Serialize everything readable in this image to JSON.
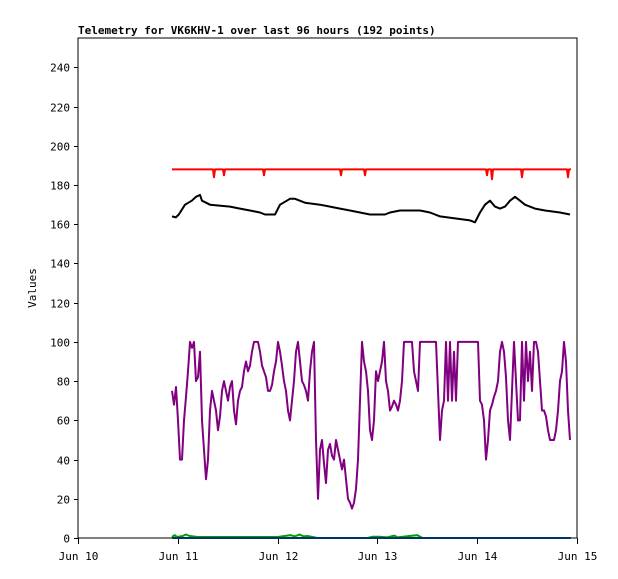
{
  "chart_data": {
    "type": "line",
    "title": "Telemetry for VK6KHV-1 over last 96 hours (192 points)",
    "xlabel": "",
    "ylabel": "Values",
    "xlim": [
      0,
      5
    ],
    "ylim": [
      0,
      255
    ],
    "x_units": "days since Jun 10",
    "xticks": [
      {
        "value": 0,
        "label": "Jun 10"
      },
      {
        "value": 1,
        "label": "Jun 11"
      },
      {
        "value": 2,
        "label": "Jun 12"
      },
      {
        "value": 3,
        "label": "Jun 13"
      },
      {
        "value": 4,
        "label": "Jun 14"
      },
      {
        "value": 5,
        "label": "Jun 15"
      }
    ],
    "yticks": [
      0,
      20,
      40,
      60,
      80,
      100,
      120,
      140,
      160,
      180,
      200,
      220,
      240
    ],
    "grid": false,
    "legend": "none",
    "series": [
      {
        "name": "red",
        "color": "#ff0000",
        "points": [
          [
            0.942,
            188
          ],
          [
            1.353,
            188
          ],
          [
            1.363,
            184
          ],
          [
            1.373,
            188
          ],
          [
            1.453,
            188
          ],
          [
            1.463,
            185
          ],
          [
            1.473,
            188
          ],
          [
            1.854,
            188
          ],
          [
            1.864,
            185
          ],
          [
            1.874,
            188
          ],
          [
            2.625,
            188
          ],
          [
            2.635,
            185
          ],
          [
            2.645,
            188
          ],
          [
            2.866,
            188
          ],
          [
            2.876,
            185
          ],
          [
            2.886,
            188
          ],
          [
            4.088,
            188
          ],
          [
            4.098,
            185
          ],
          [
            4.108,
            188
          ],
          [
            4.138,
            188
          ],
          [
            4.148,
            183
          ],
          [
            4.158,
            188
          ],
          [
            4.439,
            188
          ],
          [
            4.449,
            184
          ],
          [
            4.459,
            188
          ],
          [
            4.9,
            188
          ],
          [
            4.91,
            184
          ],
          [
            4.92,
            188
          ],
          [
            4.94,
            188
          ]
        ]
      },
      {
        "name": "black",
        "color": "#000000",
        "points": [
          [
            0.942,
            164
          ],
          [
            0.98,
            163.5
          ],
          [
            1.01,
            165
          ],
          [
            1.072,
            170
          ],
          [
            1.14,
            172
          ],
          [
            1.182,
            174
          ],
          [
            1.222,
            175
          ],
          [
            1.242,
            172
          ],
          [
            1.323,
            170
          ],
          [
            1.523,
            169
          ],
          [
            1.623,
            168
          ],
          [
            1.723,
            167
          ],
          [
            1.824,
            166
          ],
          [
            1.874,
            165
          ],
          [
            1.974,
            165
          ],
          [
            2.024,
            170
          ],
          [
            2.124,
            173
          ],
          [
            2.174,
            173
          ],
          [
            2.275,
            171
          ],
          [
            2.425,
            170
          ],
          [
            2.525,
            169
          ],
          [
            2.625,
            168
          ],
          [
            2.725,
            167
          ],
          [
            2.826,
            166
          ],
          [
            2.926,
            165
          ],
          [
            3.076,
            165
          ],
          [
            3.126,
            166
          ],
          [
            3.226,
            167
          ],
          [
            3.427,
            167
          ],
          [
            3.527,
            166
          ],
          [
            3.627,
            164
          ],
          [
            3.778,
            163
          ],
          [
            3.928,
            162
          ],
          [
            3.978,
            161
          ],
          [
            4.028,
            166
          ],
          [
            4.078,
            170
          ],
          [
            4.128,
            172
          ],
          [
            4.178,
            169
          ],
          [
            4.228,
            168
          ],
          [
            4.279,
            169
          ],
          [
            4.329,
            172
          ],
          [
            4.379,
            174
          ],
          [
            4.429,
            172
          ],
          [
            4.479,
            170
          ],
          [
            4.579,
            168
          ],
          [
            4.679,
            167
          ],
          [
            4.83,
            166
          ],
          [
            4.93,
            165
          ]
        ]
      },
      {
        "name": "purple",
        "color": "#800080",
        "x_start": 0.942,
        "x_step": 0.02004,
        "values": [
          75,
          68,
          77,
          60,
          40,
          40,
          60,
          72,
          85,
          100,
          97,
          100,
          80,
          82,
          95,
          60,
          45,
          30,
          40,
          65,
          75,
          70,
          65,
          55,
          62,
          75,
          80,
          75,
          70,
          77,
          80,
          65,
          58,
          70,
          75,
          77,
          85,
          90,
          85,
          88,
          95,
          100,
          100,
          100,
          95,
          88,
          85,
          82,
          75,
          75,
          78,
          85,
          90,
          100,
          95,
          88,
          80,
          75,
          65,
          60,
          70,
          80,
          95,
          100,
          90,
          80,
          78,
          75,
          70,
          85,
          95,
          100,
          50,
          20,
          45,
          50,
          38,
          28,
          45,
          48,
          42,
          40,
          50,
          45,
          40,
          35,
          40,
          30,
          20,
          18,
          15,
          18,
          25,
          40,
          70,
          100,
          90,
          85,
          75,
          55,
          50,
          60,
          85,
          80,
          85,
          90,
          100,
          80,
          75,
          65,
          67,
          70,
          68,
          65,
          70,
          80,
          100,
          100,
          100,
          100,
          100,
          85,
          80,
          75,
          100,
          100,
          100,
          100,
          100,
          100,
          100,
          100,
          100,
          75,
          50,
          65,
          70,
          100,
          70,
          100,
          70,
          95,
          70,
          100,
          100,
          100,
          100,
          100,
          100,
          100,
          100,
          100,
          100,
          100,
          70,
          68,
          60,
          40,
          50,
          65,
          68,
          72,
          75,
          80,
          95,
          100,
          95,
          82,
          60,
          50,
          75,
          100,
          80,
          60,
          60,
          100,
          70,
          100,
          80,
          95,
          75,
          100,
          100,
          95,
          80,
          65,
          65,
          62,
          55,
          50,
          50,
          50,
          55,
          65,
          80,
          85,
          100,
          90,
          65,
          50
        ]
      },
      {
        "name": "green",
        "color": "#00a000",
        "points": [
          [
            0.942,
            0.5
          ],
          [
            0.97,
            1.5
          ],
          [
            0.99,
            0.5
          ],
          [
            1.05,
            1
          ],
          [
            1.08,
            1.8
          ],
          [
            1.12,
            1
          ],
          [
            1.2,
            0.5
          ],
          [
            1.5,
            0.5
          ],
          [
            2.0,
            0.5
          ],
          [
            2.13,
            1.5
          ],
          [
            2.17,
            0.8
          ],
          [
            2.22,
            1.8
          ],
          [
            2.26,
            0.8
          ],
          [
            2.3,
            1
          ],
          [
            2.4,
            0
          ],
          [
            2.9,
            0
          ],
          [
            2.95,
            0.6
          ],
          [
            3.02,
            0.6
          ],
          [
            3.1,
            0.3
          ],
          [
            3.17,
            1.2
          ],
          [
            3.2,
            0.3
          ],
          [
            3.4,
            1.5
          ],
          [
            3.45,
            0
          ],
          [
            4.94,
            0
          ]
        ]
      },
      {
        "name": "blue",
        "color": "#0066cc",
        "points": [
          [
            0.942,
            0
          ],
          [
            4.94,
            0
          ]
        ]
      }
    ]
  }
}
